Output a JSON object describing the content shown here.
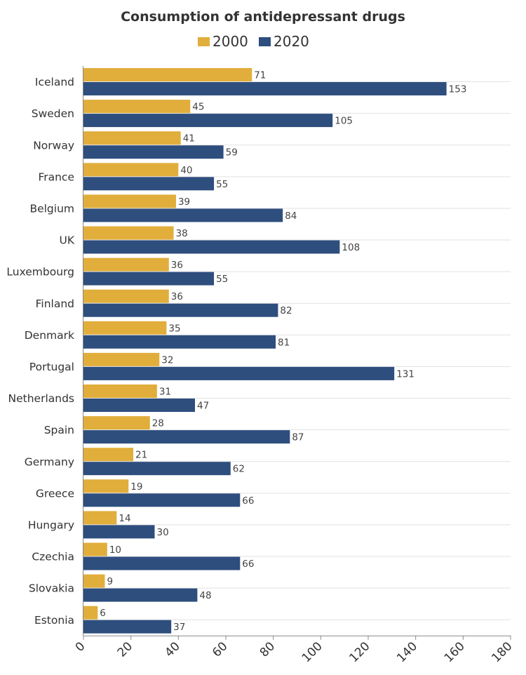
{
  "colors": {
    "series_2000": "#e1ae3c",
    "series_2020": "#2e4e7e"
  },
  "chart_data": {
    "type": "bar",
    "orientation": "horizontal",
    "title": "Consumption of antidepressant drugs",
    "xlabel": "",
    "ylabel": "",
    "xlim": [
      0,
      180
    ],
    "xticks": [
      0,
      20,
      40,
      60,
      80,
      100,
      120,
      140,
      160,
      180
    ],
    "legend_position": "top-center",
    "categories": [
      "Iceland",
      "Sweden",
      "Norway",
      "France",
      "Belgium",
      "UK",
      "Luxembourg",
      "Finland",
      "Denmark",
      "Portugal",
      "Netherlands",
      "Spain",
      "Germany",
      "Greece",
      "Hungary",
      "Czechia",
      "Slovakia",
      "Estonia"
    ],
    "series": [
      {
        "name": "2000",
        "values": [
          71,
          45,
          41,
          40,
          39,
          38,
          36,
          36,
          35,
          32,
          31,
          28,
          21,
          19,
          14,
          10,
          9,
          6
        ]
      },
      {
        "name": "2020",
        "values": [
          153,
          105,
          59,
          55,
          84,
          108,
          55,
          82,
          81,
          131,
          47,
          87,
          62,
          66,
          30,
          66,
          48,
          37
        ]
      }
    ]
  }
}
